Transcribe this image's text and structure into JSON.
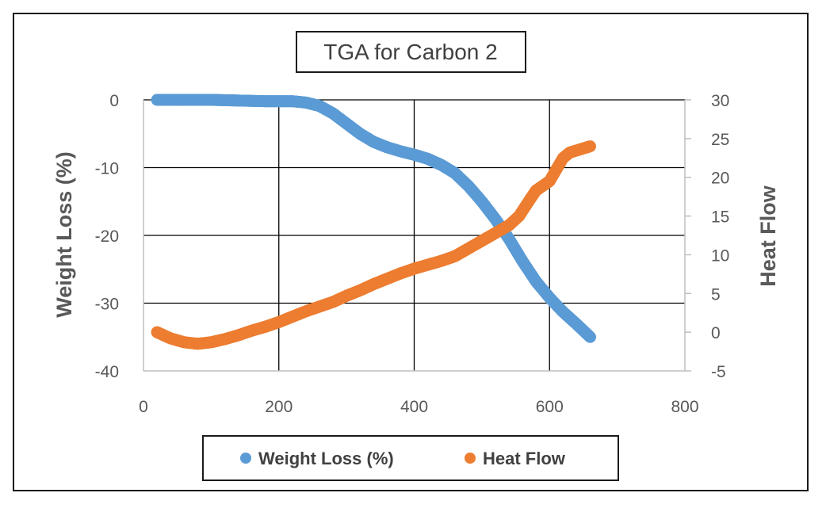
{
  "chart_data": {
    "type": "scatter",
    "title": "TGA for Carbon 2",
    "xlabel": "",
    "ylabel": "Weight Loss (%)",
    "y2label": "Heat Flow",
    "xlim": [
      0,
      800
    ],
    "ylim": [
      -40,
      0
    ],
    "y2lim": [
      -5,
      30
    ],
    "x_ticks": [
      "0",
      "200",
      "400",
      "600",
      "800"
    ],
    "y_ticks": [
      "0",
      "-10",
      "-20",
      "-30",
      "-40"
    ],
    "y2_ticks": [
      "30",
      "25",
      "20",
      "15",
      "10",
      "5",
      "0",
      "-5"
    ],
    "grid": true,
    "legend_position": "bottom",
    "colors": {
      "weight": "#5b9bd5",
      "heat": "#ed7d31",
      "grid": "#000000",
      "axis": "#bfbfbf"
    },
    "series": [
      {
        "name": "Weight Loss (%)",
        "axis": "left",
        "x": [
          20,
          60,
          100,
          140,
          180,
          220,
          240,
          260,
          280,
          300,
          320,
          340,
          360,
          380,
          400,
          420,
          440,
          460,
          480,
          500,
          520,
          540,
          560,
          580,
          600,
          620,
          640,
          660
        ],
        "y": [
          0,
          0,
          0,
          -0.1,
          -0.2,
          -0.2,
          -0.4,
          -0.9,
          -2.0,
          -3.5,
          -5.0,
          -6.2,
          -7.0,
          -7.6,
          -8.1,
          -8.7,
          -9.6,
          -10.8,
          -12.7,
          -15.0,
          -17.6,
          -20.5,
          -23.8,
          -26.8,
          -29.2,
          -31.3,
          -33.1,
          -35.0
        ]
      },
      {
        "name": "Heat Flow",
        "axis": "right",
        "x": [
          20,
          40,
          60,
          80,
          100,
          120,
          140,
          160,
          180,
          200,
          220,
          240,
          260,
          280,
          300,
          320,
          340,
          360,
          380,
          400,
          420,
          440,
          460,
          480,
          500,
          520,
          540,
          555,
          570,
          580,
          600,
          610,
          620,
          630,
          645,
          660
        ],
        "y": [
          0,
          -0.8,
          -1.3,
          -1.5,
          -1.3,
          -0.9,
          -0.4,
          0.2,
          0.7,
          1.3,
          2.0,
          2.7,
          3.3,
          3.9,
          4.7,
          5.4,
          6.2,
          6.9,
          7.6,
          8.2,
          8.7,
          9.2,
          9.8,
          10.8,
          11.8,
          12.8,
          13.8,
          15.0,
          17.0,
          18.3,
          19.5,
          21.0,
          22.5,
          23.2,
          23.6,
          24.0
        ]
      }
    ]
  }
}
